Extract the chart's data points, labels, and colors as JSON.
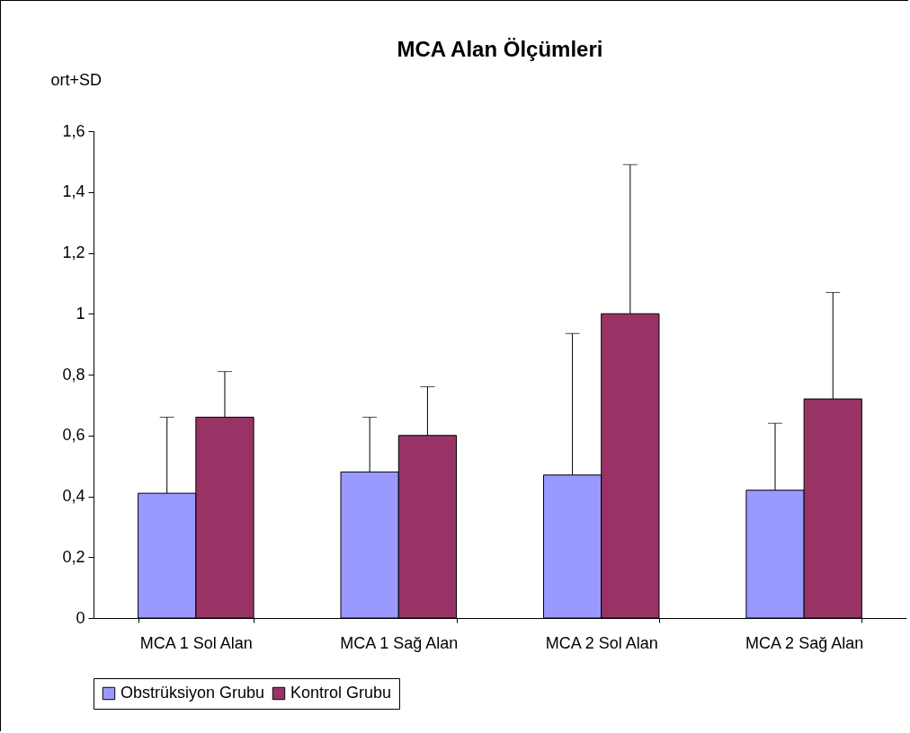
{
  "chart_data": {
    "type": "bar",
    "title": "MCA Alan Ölçümleri",
    "ylabel": "ort+SD",
    "categories": [
      "MCA 1 Sol Alan",
      "MCA 1 Sağ Alan",
      "MCA 2 Sol Alan",
      "MCA 2 Sağ Alan"
    ],
    "series": [
      {
        "name": "Obstrüksiyon Grubu",
        "color": "#9999ff",
        "values": [
          0.41,
          0.48,
          0.47,
          0.42
        ],
        "errors": [
          [
            0.41,
            0.66
          ],
          [
            0.48,
            0.66
          ],
          [
            0.47,
            0.935
          ],
          [
            0.42,
            0.64
          ]
        ]
      },
      {
        "name": "Kontrol Grubu",
        "color": "#993366",
        "values": [
          0.66,
          0.6,
          1.0,
          0.72
        ],
        "errors": [
          [
            0.66,
            0.81
          ],
          [
            0.6,
            0.76
          ],
          [
            1.0,
            1.49
          ],
          [
            0.72,
            1.07
          ]
        ]
      }
    ],
    "ylim": [
      0,
      1.6
    ],
    "yticks": [
      0,
      {
        "value": 0.2,
        "label": "0,2"
      },
      {
        "value": 0.4,
        "label": "0,4"
      },
      {
        "value": 0.6,
        "label": "0,6"
      },
      {
        "value": 0.8,
        "label": "0,8"
      },
      1,
      {
        "value": 1.2,
        "label": "1,2"
      },
      {
        "value": 1.4,
        "label": "1,4"
      },
      {
        "value": 1.6,
        "label": "1,6"
      }
    ],
    "grid": false,
    "legend": "bottom"
  }
}
